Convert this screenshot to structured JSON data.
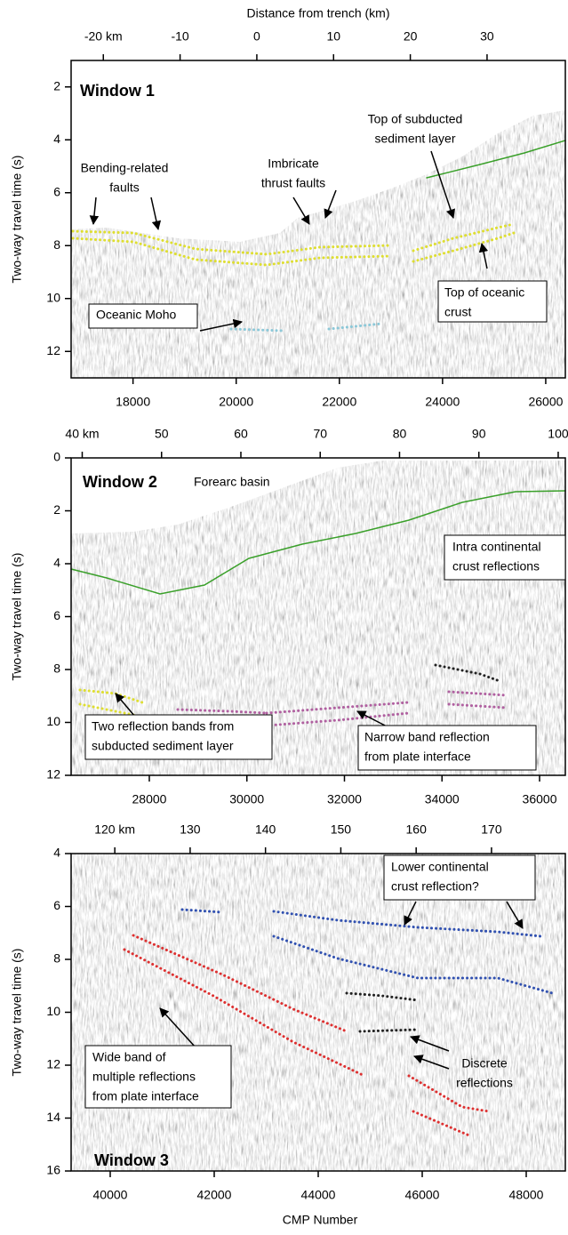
{
  "chart_data": [
    {
      "type": "image",
      "title": "Window 1",
      "ylabel": "Two-way travel time (s)",
      "x2label": "Distance from trench (km)",
      "ylim": [
        13,
        1
      ],
      "yticks": [
        2,
        4,
        6,
        8,
        10,
        12
      ],
      "xlim": [
        16800,
        26380
      ],
      "xticks": [
        18000,
        20000,
        22000,
        24000,
        26000
      ],
      "x2lim": [
        -24.2,
        40.2
      ],
      "x2ticks": [
        {
          "value": -20,
          "label": "-20 km"
        },
        -10,
        0,
        10,
        20,
        30
      ],
      "annotations": [
        [
          "Top of subducted",
          "sediment layer"
        ],
        [
          "Bending-related",
          "faults"
        ],
        [
          "Imbricate",
          "thrust faults"
        ],
        [
          "Top of oceanic",
          "crust"
        ],
        [
          "Oceanic Moho"
        ]
      ]
    },
    {
      "type": "image",
      "title": "Window 2",
      "ylabel": "Two-way travel time (s)",
      "ylim": [
        12,
        0
      ],
      "yticks": [
        0,
        2,
        4,
        6,
        8,
        10,
        12
      ],
      "xlim": [
        26397,
        36528
      ],
      "xticks": [
        28000,
        30000,
        32000,
        34000,
        36000
      ],
      "x2lim": [
        38.6,
        100.9
      ],
      "x2ticks": [
        {
          "value": 40,
          "label": "40 km"
        },
        50,
        60,
        70,
        80,
        90,
        100
      ],
      "annotations": [
        [
          "Forearc basin"
        ],
        [
          "Intra continental",
          "crust reflections"
        ],
        [
          "Two reflection bands from",
          "subducted sediment layer"
        ],
        [
          "Narrow band reflection",
          "from plate interface"
        ]
      ]
    },
    {
      "type": "image",
      "title": "Window 3",
      "ylabel": "Two-way travel time (s)",
      "xlabel": "CMP Number",
      "ylim": [
        16,
        4
      ],
      "yticks": [
        4,
        6,
        8,
        10,
        12,
        14,
        16
      ],
      "xlim": [
        39248,
        48752
      ],
      "xticks": [
        40000,
        42000,
        44000,
        46000,
        48000
      ],
      "x2lim": [
        114.2,
        179.8
      ],
      "x2ticks": [
        {
          "value": 120,
          "label": "120 km"
        },
        130,
        140,
        150,
        160,
        170
      ],
      "annotations": [
        [
          "Lower continental",
          "crust reflection?"
        ],
        [
          "Discrete",
          "reflections"
        ],
        [
          "Wide band of",
          "multiple reflections",
          "from plate interface"
        ]
      ]
    }
  ]
}
